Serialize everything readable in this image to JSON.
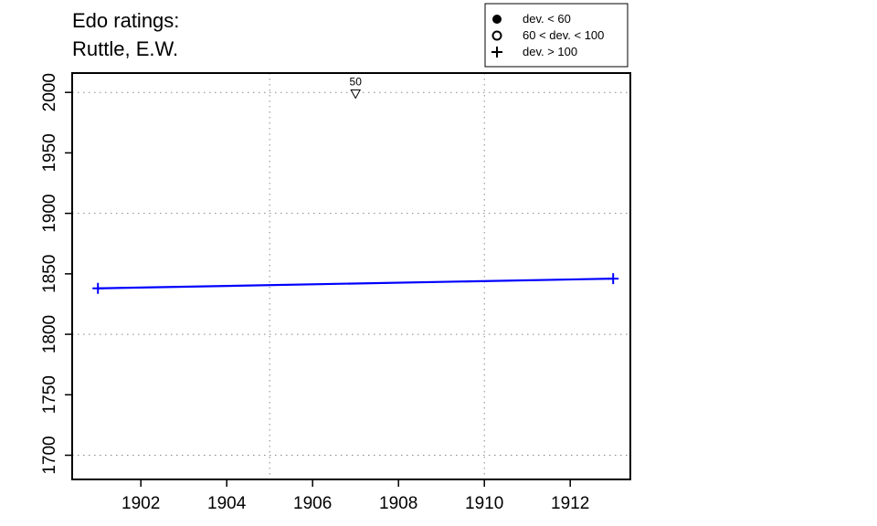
{
  "chart_data": {
    "type": "line",
    "title_lines": [
      "Edo ratings:",
      "Ruttle, E.W."
    ],
    "xlabel": "",
    "ylabel": "",
    "xlim": [
      1900.4,
      1913.4
    ],
    "ylim": [
      1680,
      2016
    ],
    "x_ticks": [
      1902,
      1904,
      1906,
      1908,
      1910,
      1912
    ],
    "y_ticks": [
      1700,
      1750,
      1800,
      1850,
      1900,
      1950,
      2000
    ],
    "x_grid": [
      1905,
      1910
    ],
    "y_grid": [
      1700,
      1800,
      1900,
      2000
    ],
    "grid": true,
    "line_color": "#0000ff",
    "series": [
      {
        "x": [
          1901,
          1913
        ],
        "values": [
          1838,
          1846
        ],
        "markers": [
          "plus",
          "plus"
        ]
      }
    ],
    "annotations": [
      {
        "x": 1907,
        "y": 1999,
        "marker": "triangle-down",
        "label": "50"
      }
    ],
    "legend": {
      "position": "top-right",
      "entries": [
        {
          "symbol": "filled-circle",
          "label": "dev. < 60"
        },
        {
          "symbol": "open-circle",
          "label": "60 < dev. < 100"
        },
        {
          "symbol": "plus",
          "label": "dev. > 100"
        }
      ]
    }
  }
}
